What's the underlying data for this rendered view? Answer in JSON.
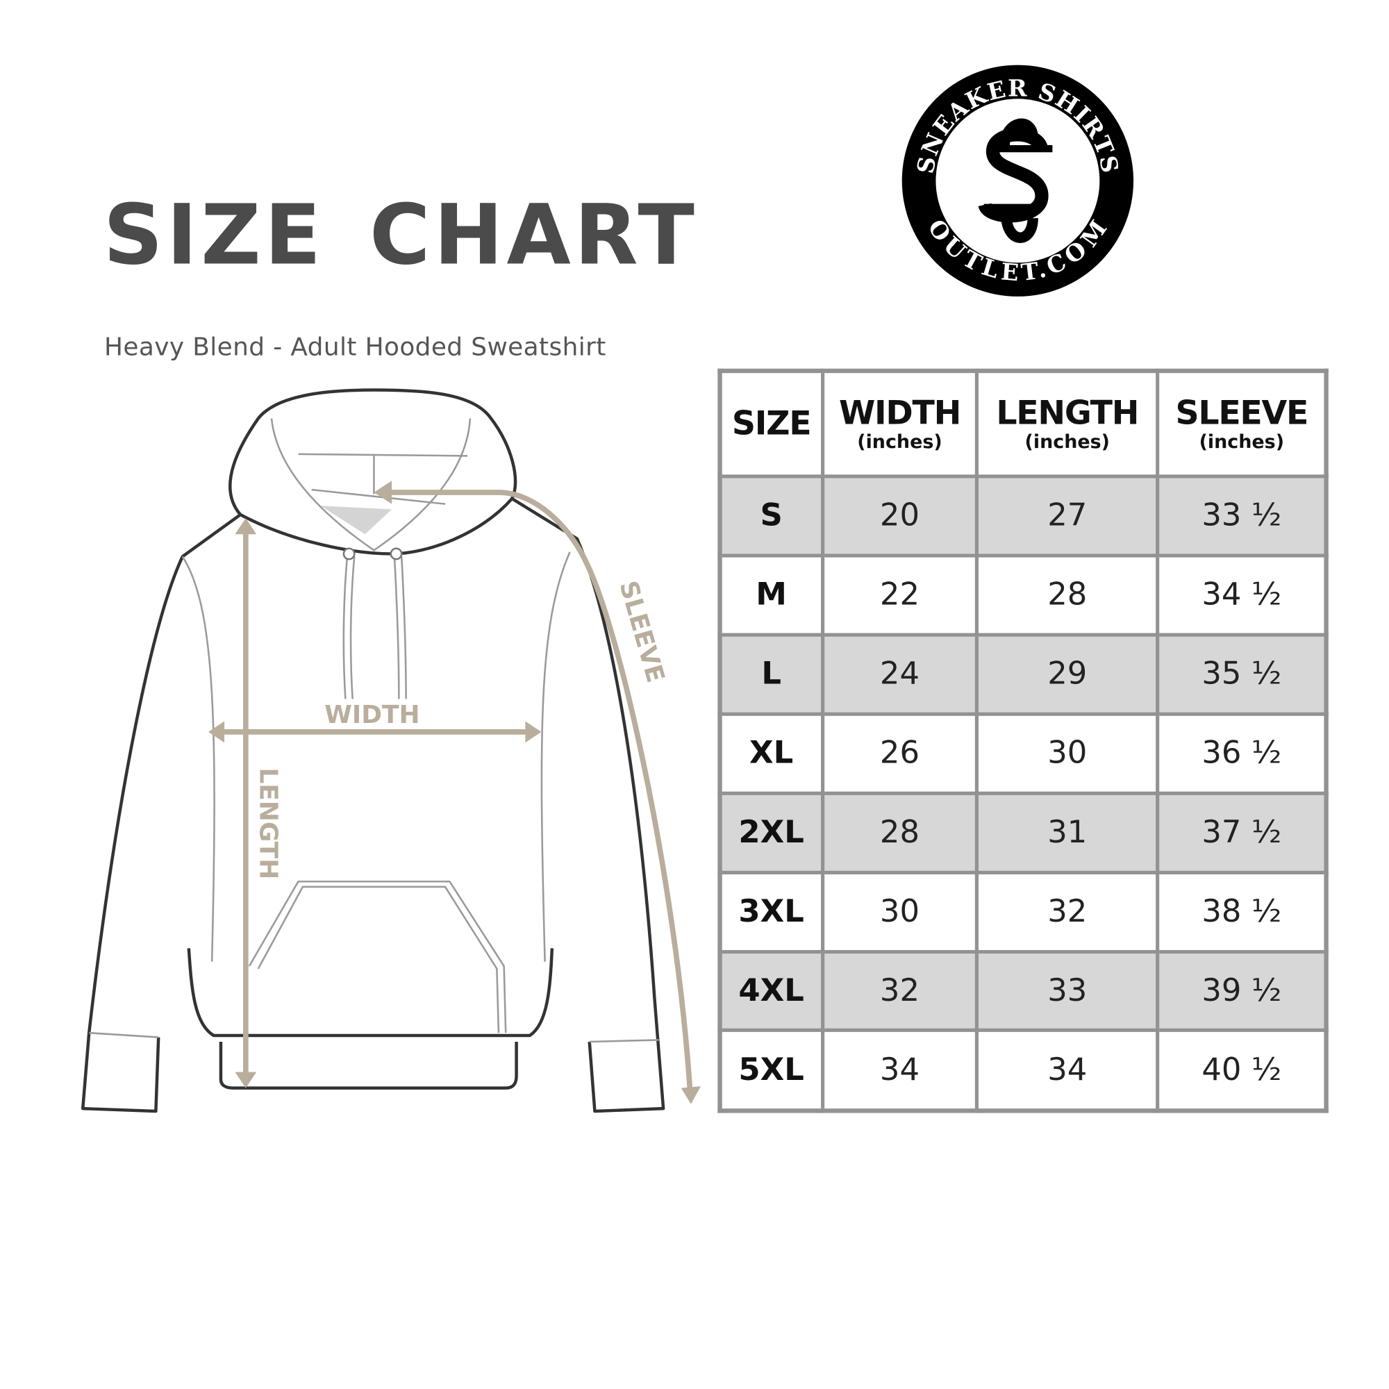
{
  "header": {
    "title": "SIZE CHART",
    "subtitle": "Heavy Blend - Adult Hooded Sweatshirt"
  },
  "logo": {
    "text_top": "SNEAKER SHIRTS",
    "text_bottom": "OUTLET.COM",
    "monogram": "SS"
  },
  "diagram": {
    "labels": {
      "width": "WIDTH",
      "length": "LENGTH",
      "sleeve": "SLEEVE"
    },
    "arrow_color": "#b9ad9c"
  },
  "table": {
    "headers": [
      {
        "main": "SIZE",
        "sub": ""
      },
      {
        "main": "WIDTH",
        "sub": "(inches)"
      },
      {
        "main": "LENGTH",
        "sub": "(inches)"
      },
      {
        "main": "SLEEVE",
        "sub": "(inches)"
      }
    ],
    "rows": [
      {
        "size": "S",
        "width": "20",
        "length": "27",
        "sleeve": "33 ½"
      },
      {
        "size": "M",
        "width": "22",
        "length": "28",
        "sleeve": "34 ½"
      },
      {
        "size": "L",
        "width": "24",
        "length": "29",
        "sleeve": "35 ½"
      },
      {
        "size": "XL",
        "width": "26",
        "length": "30",
        "sleeve": "36 ½"
      },
      {
        "size": "2XL",
        "width": "28",
        "length": "31",
        "sleeve": "37 ½"
      },
      {
        "size": "3XL",
        "width": "30",
        "length": "32",
        "sleeve": "38 ½"
      },
      {
        "size": "4XL",
        "width": "32",
        "length": "33",
        "sleeve": "39 ½"
      },
      {
        "size": "5XL",
        "width": "34",
        "length": "34",
        "sleeve": "40 ½"
      }
    ],
    "shade_color": "#d7d7d7",
    "border_color": "#929292"
  }
}
